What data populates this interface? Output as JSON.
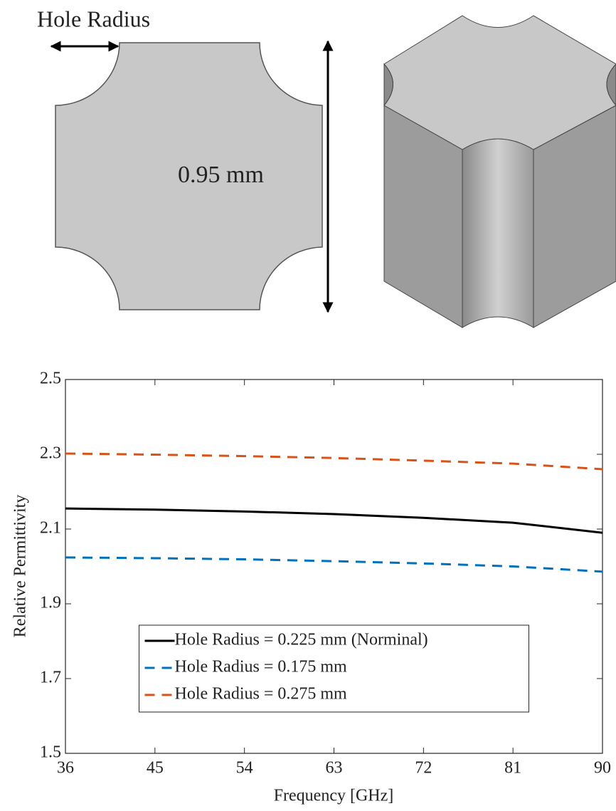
{
  "diagram": {
    "hole_label": "Hole Radius",
    "size_label": "0.95 mm"
  },
  "chart_data": {
    "type": "line",
    "x_label": "Frequency [GHz]",
    "y_label": "Relative Permittivity",
    "x": [
      36,
      45,
      54,
      63,
      72,
      81,
      90
    ],
    "series": [
      {
        "name": "Hole Radius = 0.225 mm (Norminal)",
        "color": "#000000",
        "line_style": "solid",
        "values": [
          2.155,
          2.152,
          2.147,
          2.14,
          2.13,
          2.117,
          2.09
        ]
      },
      {
        "name": "Hole Radius = 0.175 mm",
        "color": "#0072bd",
        "line_style": "dashed",
        "values": [
          2.024,
          2.022,
          2.019,
          2.014,
          2.008,
          2.0,
          1.986
        ]
      },
      {
        "name": "Hole Radius = 0.275 mm",
        "color": "#d95319",
        "line_style": "dashed",
        "values": [
          2.302,
          2.299,
          2.295,
          2.29,
          2.283,
          2.275,
          2.26
        ]
      }
    ],
    "xlim": [
      36,
      90
    ],
    "xticks": [
      36,
      45,
      54,
      63,
      72,
      81,
      90
    ],
    "ylim": [
      1.5,
      2.5
    ],
    "yticks": [
      1.5,
      1.7,
      1.9,
      2.1,
      2.3,
      2.5
    ],
    "grid": false,
    "legend": "lower center"
  }
}
